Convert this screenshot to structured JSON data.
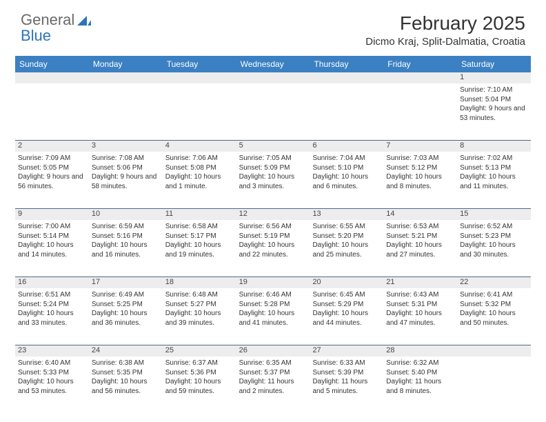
{
  "logo": {
    "part1": "General",
    "part2": "Blue"
  },
  "title": "February 2025",
  "location": "Dicmo Kraj, Split-Dalmatia, Croatia",
  "colors": {
    "header_bg": "#3b80c2",
    "header_text": "#ffffff",
    "row_border": "#4a6a8a",
    "daynum_bg": "#ededed",
    "text": "#333333",
    "logo_general": "#6a6a6a",
    "logo_blue": "#2d74b8"
  },
  "day_names": [
    "Sunday",
    "Monday",
    "Tuesday",
    "Wednesday",
    "Thursday",
    "Friday",
    "Saturday"
  ],
  "weeks": [
    [
      {
        "n": "",
        "sr": "",
        "ss": "",
        "dl": ""
      },
      {
        "n": "",
        "sr": "",
        "ss": "",
        "dl": ""
      },
      {
        "n": "",
        "sr": "",
        "ss": "",
        "dl": ""
      },
      {
        "n": "",
        "sr": "",
        "ss": "",
        "dl": ""
      },
      {
        "n": "",
        "sr": "",
        "ss": "",
        "dl": ""
      },
      {
        "n": "",
        "sr": "",
        "ss": "",
        "dl": ""
      },
      {
        "n": "1",
        "sr": "Sunrise: 7:10 AM",
        "ss": "Sunset: 5:04 PM",
        "dl": "Daylight: 9 hours and 53 minutes."
      }
    ],
    [
      {
        "n": "2",
        "sr": "Sunrise: 7:09 AM",
        "ss": "Sunset: 5:05 PM",
        "dl": "Daylight: 9 hours and 56 minutes."
      },
      {
        "n": "3",
        "sr": "Sunrise: 7:08 AM",
        "ss": "Sunset: 5:06 PM",
        "dl": "Daylight: 9 hours and 58 minutes."
      },
      {
        "n": "4",
        "sr": "Sunrise: 7:06 AM",
        "ss": "Sunset: 5:08 PM",
        "dl": "Daylight: 10 hours and 1 minute."
      },
      {
        "n": "5",
        "sr": "Sunrise: 7:05 AM",
        "ss": "Sunset: 5:09 PM",
        "dl": "Daylight: 10 hours and 3 minutes."
      },
      {
        "n": "6",
        "sr": "Sunrise: 7:04 AM",
        "ss": "Sunset: 5:10 PM",
        "dl": "Daylight: 10 hours and 6 minutes."
      },
      {
        "n": "7",
        "sr": "Sunrise: 7:03 AM",
        "ss": "Sunset: 5:12 PM",
        "dl": "Daylight: 10 hours and 8 minutes."
      },
      {
        "n": "8",
        "sr": "Sunrise: 7:02 AM",
        "ss": "Sunset: 5:13 PM",
        "dl": "Daylight: 10 hours and 11 minutes."
      }
    ],
    [
      {
        "n": "9",
        "sr": "Sunrise: 7:00 AM",
        "ss": "Sunset: 5:14 PM",
        "dl": "Daylight: 10 hours and 14 minutes."
      },
      {
        "n": "10",
        "sr": "Sunrise: 6:59 AM",
        "ss": "Sunset: 5:16 PM",
        "dl": "Daylight: 10 hours and 16 minutes."
      },
      {
        "n": "11",
        "sr": "Sunrise: 6:58 AM",
        "ss": "Sunset: 5:17 PM",
        "dl": "Daylight: 10 hours and 19 minutes."
      },
      {
        "n": "12",
        "sr": "Sunrise: 6:56 AM",
        "ss": "Sunset: 5:19 PM",
        "dl": "Daylight: 10 hours and 22 minutes."
      },
      {
        "n": "13",
        "sr": "Sunrise: 6:55 AM",
        "ss": "Sunset: 5:20 PM",
        "dl": "Daylight: 10 hours and 25 minutes."
      },
      {
        "n": "14",
        "sr": "Sunrise: 6:53 AM",
        "ss": "Sunset: 5:21 PM",
        "dl": "Daylight: 10 hours and 27 minutes."
      },
      {
        "n": "15",
        "sr": "Sunrise: 6:52 AM",
        "ss": "Sunset: 5:23 PM",
        "dl": "Daylight: 10 hours and 30 minutes."
      }
    ],
    [
      {
        "n": "16",
        "sr": "Sunrise: 6:51 AM",
        "ss": "Sunset: 5:24 PM",
        "dl": "Daylight: 10 hours and 33 minutes."
      },
      {
        "n": "17",
        "sr": "Sunrise: 6:49 AM",
        "ss": "Sunset: 5:25 PM",
        "dl": "Daylight: 10 hours and 36 minutes."
      },
      {
        "n": "18",
        "sr": "Sunrise: 6:48 AM",
        "ss": "Sunset: 5:27 PM",
        "dl": "Daylight: 10 hours and 39 minutes."
      },
      {
        "n": "19",
        "sr": "Sunrise: 6:46 AM",
        "ss": "Sunset: 5:28 PM",
        "dl": "Daylight: 10 hours and 41 minutes."
      },
      {
        "n": "20",
        "sr": "Sunrise: 6:45 AM",
        "ss": "Sunset: 5:29 PM",
        "dl": "Daylight: 10 hours and 44 minutes."
      },
      {
        "n": "21",
        "sr": "Sunrise: 6:43 AM",
        "ss": "Sunset: 5:31 PM",
        "dl": "Daylight: 10 hours and 47 minutes."
      },
      {
        "n": "22",
        "sr": "Sunrise: 6:41 AM",
        "ss": "Sunset: 5:32 PM",
        "dl": "Daylight: 10 hours and 50 minutes."
      }
    ],
    [
      {
        "n": "23",
        "sr": "Sunrise: 6:40 AM",
        "ss": "Sunset: 5:33 PM",
        "dl": "Daylight: 10 hours and 53 minutes."
      },
      {
        "n": "24",
        "sr": "Sunrise: 6:38 AM",
        "ss": "Sunset: 5:35 PM",
        "dl": "Daylight: 10 hours and 56 minutes."
      },
      {
        "n": "25",
        "sr": "Sunrise: 6:37 AM",
        "ss": "Sunset: 5:36 PM",
        "dl": "Daylight: 10 hours and 59 minutes."
      },
      {
        "n": "26",
        "sr": "Sunrise: 6:35 AM",
        "ss": "Sunset: 5:37 PM",
        "dl": "Daylight: 11 hours and 2 minutes."
      },
      {
        "n": "27",
        "sr": "Sunrise: 6:33 AM",
        "ss": "Sunset: 5:39 PM",
        "dl": "Daylight: 11 hours and 5 minutes."
      },
      {
        "n": "28",
        "sr": "Sunrise: 6:32 AM",
        "ss": "Sunset: 5:40 PM",
        "dl": "Daylight: 11 hours and 8 minutes."
      },
      {
        "n": "",
        "sr": "",
        "ss": "",
        "dl": ""
      }
    ]
  ]
}
